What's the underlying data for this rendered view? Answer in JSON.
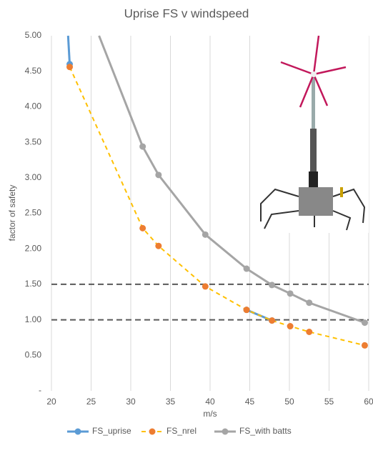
{
  "chart_data": {
    "type": "scatter-line",
    "title": "Uprise FS v windspeed",
    "x_label": "m/s",
    "y_label": "factor of safety",
    "xlim": [
      20,
      60
    ],
    "xticks": [
      20,
      25,
      30,
      35,
      40,
      45,
      50,
      55,
      60
    ],
    "ylim": [
      0,
      5
    ],
    "yticks": [
      {
        "value": 0,
        "label": "-"
      },
      {
        "value": 0.5,
        "label": "0.50"
      },
      {
        "value": 1,
        "label": "1.00"
      },
      {
        "value": 1.5,
        "label": "1.50"
      },
      {
        "value": 2,
        "label": "2.00"
      },
      {
        "value": 2.5,
        "label": "2.50"
      },
      {
        "value": 3,
        "label": "3.00"
      },
      {
        "value": 3.5,
        "label": "3.50"
      },
      {
        "value": 4,
        "label": "4.00"
      },
      {
        "value": 4.5,
        "label": "4.50"
      },
      {
        "value": 5,
        "label": "5.00"
      }
    ],
    "grid": "vertical",
    "hlines": [
      1.5,
      1.0
    ],
    "hline_color": "#595959",
    "legend": "bottom",
    "series": [
      {
        "name": "FS_uprise",
        "color": "#5b9bd5",
        "line_color": "#5b9bd5",
        "line_style": "solid",
        "x": [
          22.1,
          22.3,
          null,
          44.6,
          47.8
        ],
        "values": [
          5.0,
          4.6,
          null,
          1.14,
          0.99
        ]
      },
      {
        "name": "FS_nrel",
        "color": "#ed7d31",
        "line_color": "#ffc000",
        "line_style": "dashed",
        "x": [
          22.3,
          31.5,
          33.5,
          39.4,
          44.6,
          47.8,
          50.1,
          52.5,
          59.5
        ],
        "values": [
          4.56,
          2.29,
          2.04,
          1.47,
          1.14,
          0.99,
          0.91,
          0.83,
          0.64
        ]
      },
      {
        "name": "FS_with batts",
        "color": "#a5a5a5",
        "line_color": "#a5a5a5",
        "line_style": "solid",
        "x": [
          26.0,
          31.5,
          33.5,
          39.4,
          44.6,
          47.8,
          50.1,
          52.5,
          59.5
        ],
        "values": [
          5.0,
          3.44,
          3.04,
          2.2,
          1.72,
          1.49,
          1.37,
          1.24,
          0.96
        ]
      }
    ]
  }
}
